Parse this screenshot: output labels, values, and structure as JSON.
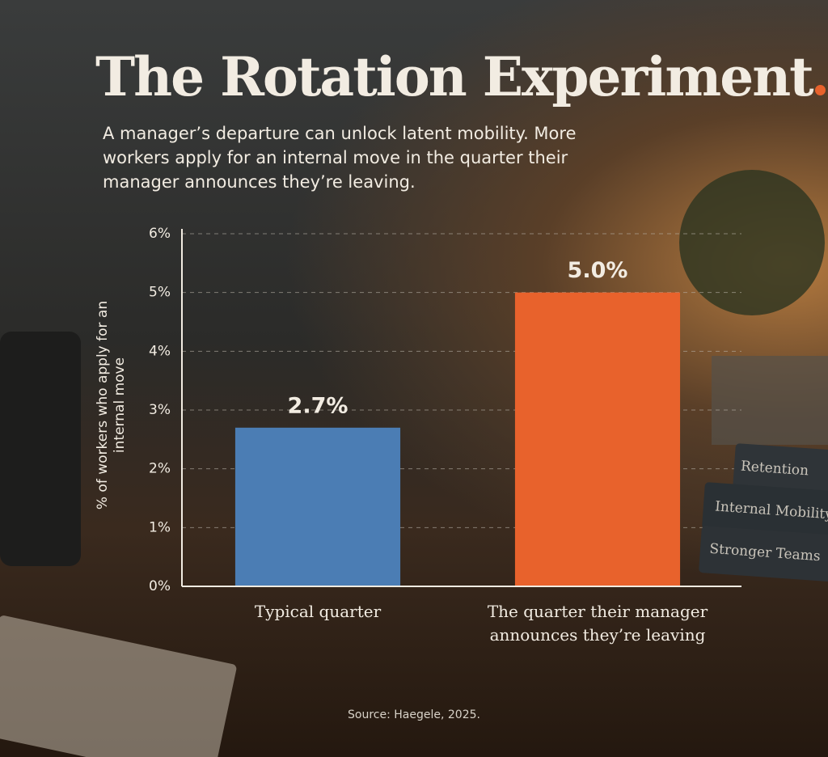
{
  "chart_data": {
    "type": "bar",
    "title": "The Rotation Experiment",
    "subtitle": "A manager’s departure can unlock latent mobility. More workers apply for an internal move in the quarter their manager announces they’re leaving.",
    "y_label": "% of workers who apply for an internal move",
    "categories": [
      "Typical quarter",
      "The quarter their manager announces they’re leaving"
    ],
    "values": [
      2.7,
      5.0
    ],
    "value_labels": [
      "2.7%",
      "5.0%"
    ],
    "colors": [
      "#4b7db4",
      "#e8622c"
    ],
    "ylim": [
      0,
      6
    ],
    "yticks": [
      {
        "value": 0,
        "label": "0%"
      },
      {
        "value": 1,
        "label": "1%"
      },
      {
        "value": 2,
        "label": "2%"
      },
      {
        "value": 3,
        "label": "3%"
      },
      {
        "value": 4,
        "label": "4%"
      },
      {
        "value": 5,
        "label": "5%"
      },
      {
        "value": 6,
        "label": "6%"
      }
    ],
    "grid": true,
    "source": "Source: Haegele, 2025."
  },
  "scene": {
    "books": [
      "Retention",
      "Internal Mobility",
      "Stronger Teams"
    ]
  }
}
